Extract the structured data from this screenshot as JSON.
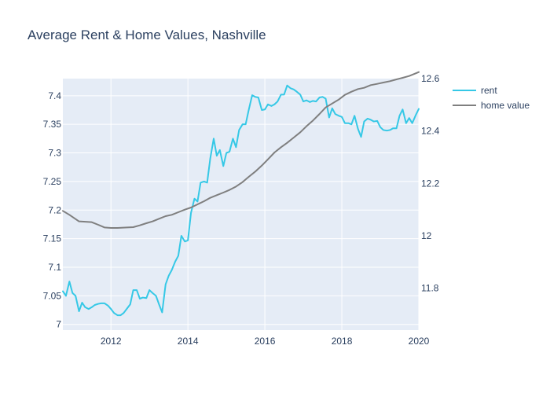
{
  "chart_data": {
    "type": "line",
    "title": "Average Rent & Home Values, Nashville",
    "xlabel": "",
    "ylabel": "",
    "y2label": "",
    "xlim": [
      2010.75,
      2020.0
    ],
    "ylim": [
      6.99,
      7.43
    ],
    "y2lim": [
      11.64,
      12.6
    ],
    "x_ticks": [
      2012,
      2014,
      2016,
      2018,
      2020
    ],
    "y_ticks": [
      7,
      7.05,
      7.1,
      7.15,
      7.2,
      7.25,
      7.3,
      7.35,
      7.4
    ],
    "y2_ticks": [
      11.8,
      12,
      12.2,
      12.4,
      12.6
    ],
    "x_tick_labels": [
      "2012",
      "2014",
      "2016",
      "2018",
      "2020"
    ],
    "y_tick_labels": [
      "7",
      "7.05",
      "7.1",
      "7.15",
      "7.2",
      "7.25",
      "7.3",
      "7.35",
      "7.4"
    ],
    "y2_tick_labels": [
      "11.8",
      "12",
      "12.2",
      "12.4",
      "12.6"
    ],
    "legend_position": "top-right",
    "grid": true,
    "colors": {
      "background": "#e5ecf6",
      "grid": "#ffffff",
      "text": "#2a3f5f"
    },
    "series": [
      {
        "name": "rent",
        "axis": "y",
        "color": "#35c8e6",
        "x": [
          2010.75,
          2010.83,
          2010.92,
          2011.0,
          2011.08,
          2011.17,
          2011.25,
          2011.33,
          2011.42,
          2011.5,
          2011.58,
          2011.67,
          2011.75,
          2011.83,
          2011.92,
          2012.0,
          2012.08,
          2012.17,
          2012.25,
          2012.33,
          2012.42,
          2012.5,
          2012.58,
          2012.67,
          2012.75,
          2012.83,
          2012.92,
          2013.0,
          2013.08,
          2013.17,
          2013.25,
          2013.33,
          2013.42,
          2013.5,
          2013.58,
          2013.67,
          2013.75,
          2013.83,
          2013.92,
          2014.0,
          2014.08,
          2014.17,
          2014.25,
          2014.33,
          2014.42,
          2014.5,
          2014.58,
          2014.67,
          2014.75,
          2014.83,
          2014.92,
          2015.0,
          2015.08,
          2015.17,
          2015.25,
          2015.33,
          2015.42,
          2015.5,
          2015.58,
          2015.67,
          2015.75,
          2015.83,
          2015.92,
          2016.0,
          2016.08,
          2016.17,
          2016.25,
          2016.33,
          2016.42,
          2016.5,
          2016.58,
          2016.67,
          2016.75,
          2016.83,
          2016.92,
          2017.0,
          2017.08,
          2017.17,
          2017.25,
          2017.33,
          2017.42,
          2017.5,
          2017.58,
          2017.67,
          2017.75,
          2017.83,
          2017.92,
          2018.0,
          2018.08,
          2018.17,
          2018.25,
          2018.33,
          2018.42,
          2018.5,
          2018.58,
          2018.67,
          2018.75,
          2018.83,
          2018.92,
          2019.0,
          2019.08,
          2019.17,
          2019.25,
          2019.33,
          2019.42,
          2019.5,
          2019.58,
          2019.67,
          2019.75,
          2019.83,
          2019.92,
          2020.0
        ],
        "y": [
          7.058,
          7.05,
          7.075,
          7.055,
          7.05,
          7.023,
          7.038,
          7.03,
          7.027,
          7.03,
          7.034,
          7.036,
          7.037,
          7.037,
          7.033,
          7.027,
          7.02,
          7.016,
          7.016,
          7.02,
          7.028,
          7.035,
          7.06,
          7.06,
          7.045,
          7.047,
          7.046,
          7.06,
          7.055,
          7.05,
          7.035,
          7.021,
          7.07,
          7.085,
          7.095,
          7.11,
          7.12,
          7.155,
          7.145,
          7.147,
          7.195,
          7.22,
          7.215,
          7.248,
          7.25,
          7.248,
          7.29,
          7.325,
          7.295,
          7.305,
          7.277,
          7.3,
          7.302,
          7.325,
          7.31,
          7.34,
          7.35,
          7.35,
          7.375,
          7.401,
          7.398,
          7.397,
          7.375,
          7.376,
          7.385,
          7.382,
          7.385,
          7.39,
          7.402,
          7.402,
          7.418,
          7.413,
          7.411,
          7.407,
          7.402,
          7.39,
          7.392,
          7.389,
          7.391,
          7.39,
          7.397,
          7.398,
          7.395,
          7.362,
          7.378,
          7.368,
          7.365,
          7.363,
          7.352,
          7.352,
          7.35,
          7.365,
          7.342,
          7.328,
          7.355,
          7.36,
          7.358,
          7.355,
          7.356,
          7.345,
          7.34,
          7.339,
          7.34,
          7.343,
          7.343,
          7.365,
          7.376,
          7.352,
          7.361,
          7.352,
          7.366,
          7.377
        ]
      },
      {
        "name": "home value",
        "axis": "y2",
        "color": "#7f7f7f",
        "x": [
          2010.75,
          2010.92,
          2011.17,
          2011.5,
          2011.67,
          2011.83,
          2012.0,
          2012.17,
          2012.42,
          2012.58,
          2012.75,
          2012.92,
          2013.08,
          2013.25,
          2013.42,
          2013.58,
          2013.75,
          2013.92,
          2014.08,
          2014.25,
          2014.42,
          2014.58,
          2014.75,
          2014.92,
          2015.08,
          2015.25,
          2015.42,
          2015.58,
          2015.75,
          2015.92,
          2016.08,
          2016.25,
          2016.42,
          2016.58,
          2016.75,
          2016.92,
          2017.08,
          2017.25,
          2017.42,
          2017.58,
          2017.75,
          2017.92,
          2018.08,
          2018.25,
          2018.42,
          2018.58,
          2018.75,
          2018.92,
          2019.08,
          2019.25,
          2019.42,
          2019.58,
          2019.75,
          2019.92,
          2020.0
        ],
        "y": [
          12.095,
          12.08,
          12.055,
          12.052,
          12.042,
          12.032,
          12.03,
          12.03,
          12.032,
          12.033,
          12.04,
          12.048,
          12.055,
          12.065,
          12.075,
          12.08,
          12.09,
          12.1,
          12.108,
          12.12,
          12.132,
          12.145,
          12.155,
          12.165,
          12.175,
          12.188,
          12.205,
          12.225,
          12.245,
          12.268,
          12.292,
          12.318,
          12.338,
          12.355,
          12.375,
          12.395,
          12.418,
          12.44,
          12.465,
          12.49,
          12.505,
          12.52,
          12.538,
          12.55,
          12.56,
          12.565,
          12.575,
          12.58,
          12.585,
          12.59,
          12.597,
          12.603,
          12.61,
          12.62,
          12.625
        ]
      }
    ]
  }
}
